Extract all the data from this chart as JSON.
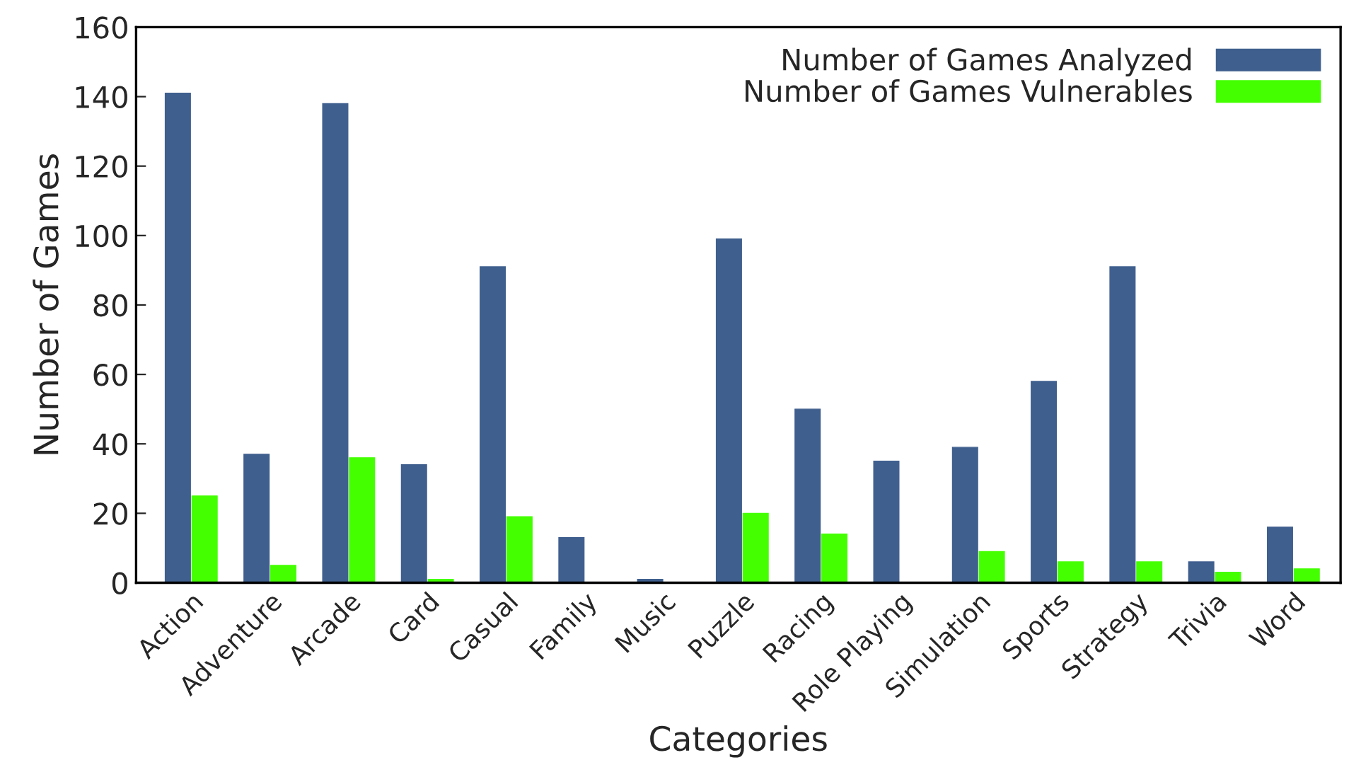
{
  "chart_data": {
    "type": "bar",
    "xlabel": "Categories",
    "ylabel": "Number of Games",
    "categories": [
      "Action",
      "Adventure",
      "Arcade",
      "Card",
      "Casual",
      "Family",
      "Music",
      "Puzzle",
      "Racing",
      "Role Playing",
      "Simulation",
      "Sports",
      "Strategy",
      "Trivia",
      "Word"
    ],
    "series": [
      {
        "name": "Number of Games Analyzed",
        "color": "#3f5f8e",
        "values": [
          141,
          37,
          138,
          34,
          91,
          13,
          1,
          99,
          50,
          35,
          39,
          58,
          91,
          6,
          16
        ]
      },
      {
        "name": "Number of Games Vulnerables",
        "color": "#44ff00",
        "values": [
          25,
          5,
          36,
          1,
          19,
          0,
          0,
          20,
          14,
          0,
          9,
          6,
          6,
          3,
          4
        ]
      }
    ],
    "ylim": [
      0,
      160
    ],
    "yticks": [
      0,
      20,
      40,
      60,
      80,
      100,
      120,
      140,
      160
    ],
    "grid": false,
    "legend": "top right"
  }
}
